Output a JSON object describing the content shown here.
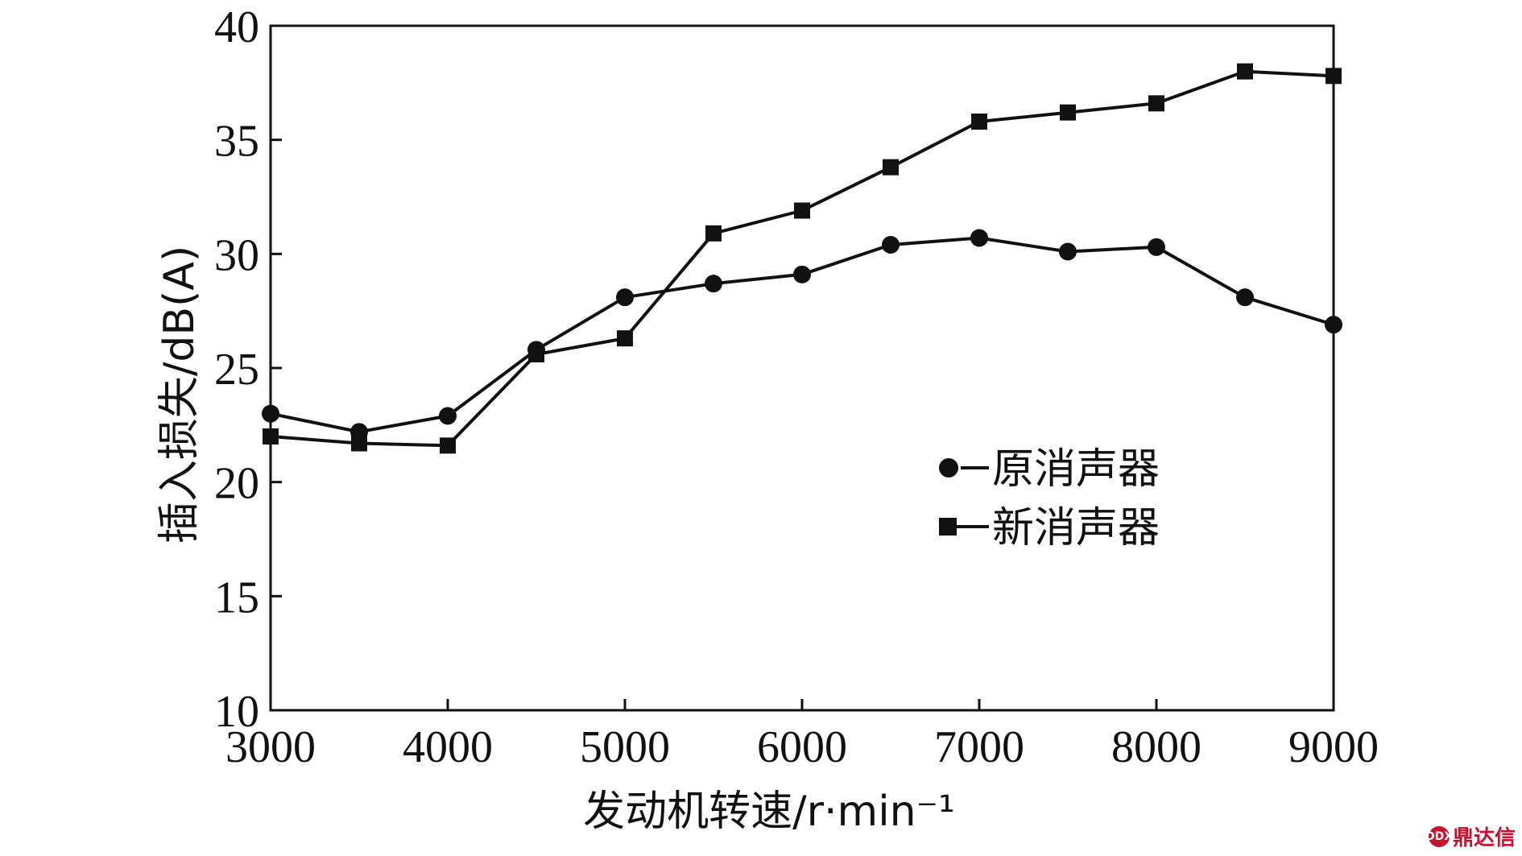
{
  "chart_data": {
    "type": "line",
    "title": "",
    "xlabel": "发动机转速/r·min⁻¹",
    "ylabel": "插入损失/dB(A)",
    "x": [
      3000,
      3500,
      4000,
      4500,
      5000,
      5500,
      6000,
      6500,
      7000,
      7500,
      8000,
      8500,
      9000
    ],
    "xlim": [
      3000,
      9000
    ],
    "ylim": [
      10,
      40
    ],
    "xticks": [
      "3000",
      "4000",
      "5000",
      "6000",
      "7000",
      "8000",
      "9000"
    ],
    "yticks": [
      "10",
      "15",
      "20",
      "25",
      "30",
      "35",
      "40"
    ],
    "grid": false,
    "legend_position": "center-right",
    "series": [
      {
        "name": "原消声器",
        "marker": "circle",
        "values": [
          23.0,
          22.2,
          22.9,
          25.8,
          28.1,
          28.7,
          29.1,
          30.4,
          30.7,
          30.1,
          30.3,
          28.1,
          26.9
        ]
      },
      {
        "name": "新消声器",
        "marker": "square",
        "values": [
          22.0,
          21.7,
          21.6,
          25.6,
          26.3,
          30.9,
          31.9,
          33.8,
          35.8,
          36.2,
          36.6,
          38.0,
          37.8
        ]
      }
    ]
  },
  "watermark": {
    "text": "鼎达信",
    "logo_text": "DDX"
  }
}
